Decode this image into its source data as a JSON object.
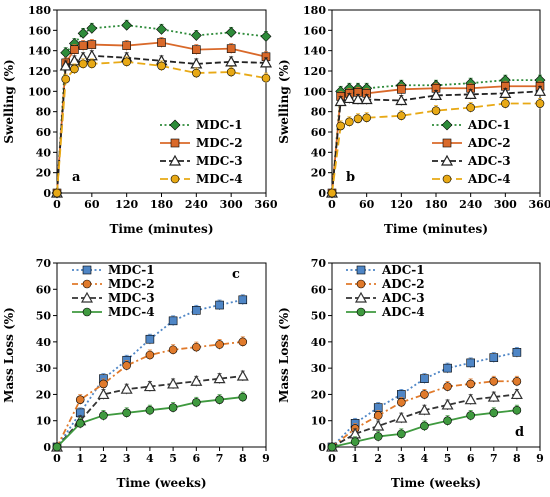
{
  "chart_data": [
    {
      "type": "line",
      "panel_label": "a",
      "xlabel": "Time (minutes)",
      "ylabel": "Swelling (%)",
      "xlim": [
        0,
        360
      ],
      "ylim": [
        0,
        180
      ],
      "xticks": [
        0,
        60,
        120,
        180,
        240,
        300,
        360
      ],
      "xtick_labels": [
        "0",
        "60",
        "120",
        "180",
        "240",
        "300",
        "360"
      ],
      "yticks": [
        0,
        20,
        40,
        60,
        80,
        100,
        120,
        140,
        160,
        180
      ],
      "ytick_labels": [
        "0",
        "20",
        "40",
        "60",
        "80",
        "100",
        "120",
        "140",
        "160",
        "180"
      ],
      "legend_position": "bottom-right",
      "series": [
        {
          "name": "MDC-1",
          "color": "#2e8b3a",
          "marker": "diamond",
          "dash": "dotted",
          "x": [
            0,
            15,
            30,
            45,
            60,
            120,
            180,
            240,
            300,
            360
          ],
          "y": [
            0,
            138,
            147,
            157,
            162,
            165,
            161,
            155,
            158,
            154
          ]
        },
        {
          "name": "MDC-2",
          "color": "#d9692a",
          "marker": "square",
          "dash": "solid",
          "x": [
            0,
            15,
            30,
            45,
            60,
            120,
            180,
            240,
            300,
            360
          ],
          "y": [
            0,
            128,
            141,
            145,
            146,
            145,
            148,
            141,
            142,
            134
          ]
        },
        {
          "name": "MDC-3",
          "color": "#222222",
          "marker": "triangle",
          "dash": "dashed",
          "x": [
            0,
            15,
            30,
            45,
            60,
            120,
            180,
            240,
            300,
            360
          ],
          "y": [
            0,
            125,
            130,
            133,
            135,
            133,
            130,
            127,
            129,
            128
          ]
        },
        {
          "name": "MDC-4",
          "color": "#e8a915",
          "marker": "circle",
          "dash": "longdash",
          "x": [
            0,
            15,
            30,
            45,
            60,
            120,
            180,
            240,
            300,
            360
          ],
          "y": [
            0,
            112,
            122,
            127,
            127,
            129,
            125,
            118,
            119,
            113
          ]
        }
      ]
    },
    {
      "type": "line",
      "panel_label": "b",
      "xlabel": "Time (minutes)",
      "ylabel": "Swelling (%)",
      "xlim": [
        0,
        360
      ],
      "ylim": [
        0,
        180
      ],
      "xticks": [
        0,
        60,
        120,
        180,
        240,
        300,
        360
      ],
      "xtick_labels": [
        "0",
        "60",
        "120",
        "180",
        "240",
        "300",
        "360"
      ],
      "yticks": [
        0,
        20,
        40,
        60,
        80,
        100,
        120,
        140,
        160,
        180
      ],
      "ytick_labels": [
        "0",
        "20",
        "40",
        "60",
        "80",
        "100",
        "120",
        "140",
        "160",
        "180"
      ],
      "legend_position": "bottom-right",
      "series": [
        {
          "name": "ADC-1",
          "color": "#2e8b3a",
          "marker": "diamond",
          "dash": "dotted",
          "x": [
            0,
            15,
            30,
            45,
            60,
            120,
            180,
            240,
            300,
            360
          ],
          "y": [
            0,
            100,
            103,
            103,
            103,
            106,
            106,
            108,
            111,
            111
          ]
        },
        {
          "name": "ADC-2",
          "color": "#d9692a",
          "marker": "square",
          "dash": "solid",
          "x": [
            0,
            15,
            30,
            45,
            60,
            120,
            180,
            240,
            300,
            360
          ],
          "y": [
            0,
            95,
            98,
            99,
            98,
            102,
            103,
            103,
            105,
            105
          ]
        },
        {
          "name": "ADC-3",
          "color": "#222222",
          "marker": "triangle",
          "dash": "dashed",
          "x": [
            0,
            15,
            30,
            45,
            60,
            120,
            180,
            240,
            300,
            360
          ],
          "y": [
            0,
            90,
            93,
            92,
            92,
            91,
            96,
            97,
            98,
            100
          ]
        },
        {
          "name": "ADC-4",
          "color": "#e8a915",
          "marker": "circle",
          "dash": "longdash",
          "x": [
            0,
            15,
            30,
            45,
            60,
            120,
            180,
            240,
            300,
            360
          ],
          "y": [
            0,
            66,
            70,
            73,
            74,
            76,
            81,
            84,
            88,
            88
          ]
        }
      ]
    },
    {
      "type": "line",
      "panel_label": "c",
      "xlabel": "Time (weeks)",
      "ylabel": "Mass Loss (%)",
      "xlim": [
        0,
        9
      ],
      "ylim": [
        0,
        70
      ],
      "xticks": [
        0,
        1,
        2,
        3,
        4,
        5,
        6,
        7,
        8,
        9
      ],
      "xtick_labels": [
        "0",
        "1",
        "2",
        "3",
        "4",
        "5",
        "6",
        "7",
        "8",
        "9"
      ],
      "yticks": [
        0,
        10,
        20,
        30,
        40,
        50,
        60,
        70
      ],
      "ytick_labels": [
        "0",
        "10",
        "20",
        "30",
        "40",
        "50",
        "60",
        "70"
      ],
      "legend_position": "top-left",
      "series": [
        {
          "name": "MDC-1",
          "color": "#4f86c6",
          "marker": "square",
          "dash": "dotted",
          "x": [
            0,
            1,
            2,
            3,
            4,
            5,
            6,
            7,
            8
          ],
          "y": [
            0,
            13,
            26,
            33,
            41,
            48,
            52,
            54,
            56
          ]
        },
        {
          "name": "MDC-2",
          "color": "#e07a2b",
          "marker": "circle",
          "dash": "dashdot",
          "x": [
            0,
            1,
            2,
            3,
            4,
            5,
            6,
            7,
            8
          ],
          "y": [
            0,
            18,
            24,
            31,
            35,
            37,
            38,
            39,
            40
          ]
        },
        {
          "name": "MDC-3",
          "color": "#333333",
          "marker": "triangle",
          "dash": "dashed",
          "x": [
            0,
            1,
            2,
            3,
            4,
            5,
            6,
            7,
            8
          ],
          "y": [
            0,
            10,
            20,
            22,
            23,
            24,
            25,
            26,
            27
          ]
        },
        {
          "name": "MDC-4",
          "color": "#3f9a3f",
          "marker": "circle",
          "dash": "solid",
          "x": [
            0,
            1,
            2,
            3,
            4,
            5,
            6,
            7,
            8
          ],
          "y": [
            0,
            9,
            12,
            13,
            14,
            15,
            17,
            18,
            19
          ]
        }
      ]
    },
    {
      "type": "line",
      "panel_label": "d",
      "xlabel": "Time (weeks)",
      "ylabel": "Mass Loss (%)",
      "xlim": [
        0,
        9
      ],
      "ylim": [
        0,
        70
      ],
      "xticks": [
        0,
        1,
        2,
        3,
        4,
        5,
        6,
        7,
        8,
        9
      ],
      "xtick_labels": [
        "0",
        "1",
        "2",
        "3",
        "4",
        "5",
        "6",
        "7",
        "8",
        "9"
      ],
      "yticks": [
        0,
        10,
        20,
        30,
        40,
        50,
        60,
        70
      ],
      "ytick_labels": [
        "0",
        "10",
        "20",
        "30",
        "40",
        "50",
        "60",
        "70"
      ],
      "legend_position": "top-left",
      "series": [
        {
          "name": "ADC-1",
          "color": "#4f86c6",
          "marker": "square",
          "dash": "dotted",
          "x": [
            0,
            1,
            2,
            3,
            4,
            5,
            6,
            7,
            8
          ],
          "y": [
            0,
            9,
            15,
            20,
            26,
            30,
            32,
            34,
            36
          ]
        },
        {
          "name": "ADC-2",
          "color": "#e07a2b",
          "marker": "circle",
          "dash": "dashdot",
          "x": [
            0,
            1,
            2,
            3,
            4,
            5,
            6,
            7,
            8
          ],
          "y": [
            0,
            7,
            12,
            17,
            20,
            23,
            24,
            25,
            25
          ]
        },
        {
          "name": "ADC-3",
          "color": "#333333",
          "marker": "triangle",
          "dash": "dashed",
          "x": [
            0,
            1,
            2,
            3,
            4,
            5,
            6,
            7,
            8
          ],
          "y": [
            0,
            5,
            8,
            11,
            14,
            16,
            18,
            19,
            20
          ]
        },
        {
          "name": "ADC-4",
          "color": "#3f9a3f",
          "marker": "circle",
          "dash": "solid",
          "x": [
            0,
            1,
            2,
            3,
            4,
            5,
            6,
            7,
            8
          ],
          "y": [
            0,
            2,
            4,
            5,
            8,
            10,
            12,
            13,
            14
          ]
        }
      ]
    }
  ]
}
